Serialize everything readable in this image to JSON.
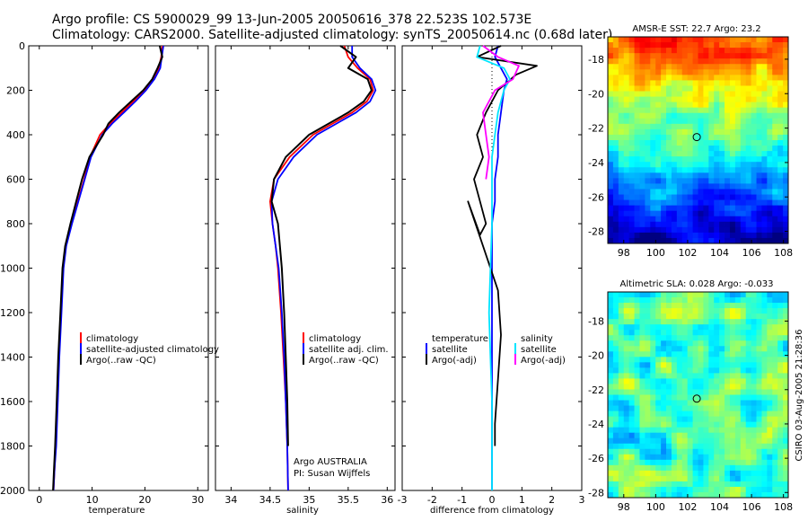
{
  "title_line1": "Argo profile: CS 5900029_99 13-Jun-2005 20050616_378 22.523S 102.573E",
  "title_line2": "Climatology: CARS2000. Satellite-adjusted climatology: synTS_20050614.nc (0.68d later)",
  "colors": {
    "climatology": "#ff0000",
    "satellite": "#0000ff",
    "argo": "#000000",
    "salinity": "#00e5ff",
    "salinity_argo": "#ff00ff"
  },
  "chart_data": [
    {
      "type": "line",
      "xlabel": "temperature",
      "ylim": [
        2000,
        0
      ],
      "xlim": [
        -2,
        32
      ],
      "xticks": [
        0,
        10,
        20,
        30
      ],
      "yticks": [
        0,
        200,
        400,
        600,
        800,
        1000,
        1200,
        1400,
        1600,
        1800,
        2000
      ],
      "series": [
        {
          "name": "climatology",
          "color": "#ff0000",
          "x": [
            23.3,
            23.1,
            22.6,
            21.5,
            19.9,
            17.8,
            15.6,
            13.4,
            11.5,
            9.6,
            8.5,
            7.3,
            6.1,
            5.0,
            4.5,
            4.1,
            3.7,
            3.4,
            3.1,
            2.9,
            2.7
          ],
          "y": [
            0,
            50,
            100,
            150,
            200,
            250,
            300,
            350,
            400,
            500,
            600,
            700,
            800,
            900,
            1000,
            1200,
            1400,
            1600,
            1800,
            1900,
            2000
          ]
        },
        {
          "name": "satellite-adjusted climatology",
          "color": "#0000ff",
          "x": [
            23.5,
            23.2,
            22.9,
            21.8,
            20.2,
            18.2,
            16.0,
            13.8,
            11.9,
            9.8,
            8.6,
            7.4,
            6.2,
            5.1,
            4.6,
            4.2,
            3.8,
            3.5,
            3.2,
            2.9,
            2.7
          ],
          "y": [
            0,
            50,
            100,
            150,
            200,
            250,
            300,
            350,
            400,
            500,
            600,
            700,
            800,
            900,
            1000,
            1200,
            1400,
            1600,
            1800,
            1900,
            2000
          ]
        },
        {
          "name": "Argo(..raw -QC)",
          "color": "#000000",
          "x": [
            22.8,
            23.3,
            22.4,
            21.4,
            19.7,
            17.4,
            15.1,
            13.1,
            12.1,
            9.5,
            8.1,
            7.0,
            5.9,
            4.9,
            4.4,
            4.0,
            3.6,
            3.3,
            3.0,
            2.8,
            2.6
          ],
          "y": [
            0,
            50,
            100,
            150,
            200,
            250,
            300,
            350,
            400,
            500,
            600,
            700,
            800,
            900,
            1000,
            1200,
            1400,
            1600,
            1800,
            1900,
            2000
          ]
        }
      ]
    },
    {
      "type": "line",
      "xlabel": "salinity",
      "ylim": [
        2000,
        0
      ],
      "xlim": [
        33.8,
        36.1
      ],
      "xticks": [
        34,
        34.5,
        35,
        35.5,
        36
      ],
      "series": [
        {
          "name": "climatology",
          "color": "#ff0000",
          "x": [
            35.45,
            35.5,
            35.62,
            35.78,
            35.82,
            35.74,
            35.55,
            35.3,
            35.05,
            34.75,
            34.55,
            34.5,
            34.53,
            34.57,
            34.6,
            34.64,
            34.67,
            34.7,
            34.72,
            34.73
          ],
          "y": [
            0,
            50,
            100,
            150,
            200,
            250,
            300,
            350,
            400,
            500,
            600,
            700,
            800,
            900,
            1000,
            1200,
            1400,
            1600,
            1800,
            2000
          ]
        },
        {
          "name": "satellite adj. clim.",
          "color": "#0000ff",
          "x": [
            35.55,
            35.55,
            35.65,
            35.8,
            35.85,
            35.78,
            35.6,
            35.35,
            35.1,
            34.8,
            34.6,
            34.52,
            34.53,
            34.57,
            34.61,
            34.65,
            34.68,
            34.7,
            34.72,
            34.73
          ],
          "y": [
            0,
            50,
            100,
            150,
            200,
            250,
            300,
            350,
            400,
            500,
            600,
            700,
            800,
            900,
            1000,
            1200,
            1400,
            1600,
            1800,
            2000
          ]
        },
        {
          "name": "Argo(..raw -QC)",
          "color": "#000000",
          "x": [
            35.4,
            35.6,
            35.5,
            35.75,
            35.8,
            35.7,
            35.5,
            35.25,
            35.0,
            34.7,
            34.55,
            34.52,
            34.6,
            34.65,
            34.68,
            34.7,
            34.72,
            34.73
          ],
          "y": [
            0,
            50,
            100,
            150,
            200,
            250,
            300,
            350,
            400,
            500,
            600,
            700,
            800,
            1000,
            1200,
            1400,
            1600,
            1800
          ]
        }
      ]
    },
    {
      "type": "line",
      "xlabel": "difference from climatology",
      "ylim": [
        2000,
        0
      ],
      "xlim": [
        -3,
        3
      ],
      "xticks": [
        -3,
        -2,
        -1,
        0,
        1,
        2,
        3
      ],
      "series": [
        {
          "name": "temperature satellite",
          "color": "#0000ff",
          "x": [
            0.2,
            0.1,
            0.3,
            0.5,
            0.4,
            0.3,
            0.2,
            0.2,
            0.1,
            0.1,
            0.0,
            0.0,
            0.0,
            0.0,
            0.0,
            0.0
          ],
          "y": [
            0,
            50,
            100,
            150,
            200,
            300,
            400,
            500,
            600,
            700,
            800,
            1000,
            1200,
            1400,
            1600,
            2000
          ]
        },
        {
          "name": "temperature Argo(-adj)",
          "color": "#000000",
          "x": [
            0.3,
            -0.5,
            1.5,
            0.8,
            0.2,
            -0.2,
            -0.5,
            -0.3,
            -0.6,
            -0.4,
            -0.2,
            -0.4,
            -0.8,
            -0.3,
            0.2,
            0.3,
            0.2,
            0.1,
            0.1
          ],
          "y": [
            0,
            50,
            90,
            130,
            200,
            300,
            400,
            500,
            600,
            700,
            800,
            850,
            700,
            900,
            1100,
            1300,
            1500,
            1700,
            1800
          ]
        },
        {
          "name": "salinity satellite",
          "color": "#00e5ff",
          "x": [
            -0.4,
            -0.5,
            0.4,
            0.6,
            0.4,
            0.2,
            0.1,
            0.0,
            0.0,
            0.0,
            -0.05,
            -0.1,
            -0.05,
            0.0,
            0.0
          ],
          "y": [
            0,
            50,
            100,
            150,
            200,
            300,
            400,
            500,
            600,
            800,
            1000,
            1200,
            1400,
            1600,
            2000
          ]
        },
        {
          "name": "salinity Argo(-adj)",
          "color": "#ff00ff",
          "x": [
            -0.3,
            0.2,
            0.9,
            0.7,
            0.1,
            -0.3,
            -0.2,
            -0.1,
            -0.2
          ],
          "y": [
            0,
            50,
            90,
            150,
            200,
            300,
            400,
            500,
            600
          ]
        }
      ]
    },
    {
      "type": "heatmap",
      "title": "AMSR-E SST: 22.7 Argo: 23.2",
      "xlim": [
        97,
        108.3
      ],
      "ylim": [
        -28.7,
        -16.7
      ],
      "xticks": [
        98,
        100,
        102,
        104,
        106,
        108
      ],
      "yticks": [
        -18,
        -20,
        -22,
        -24,
        -26,
        -28
      ],
      "marker": {
        "x": 102.573,
        "y": -22.523
      }
    },
    {
      "type": "heatmap",
      "title": "Altimetric SLA: 0.028 Argo: -0.033",
      "xlim": [
        97,
        108.3
      ],
      "ylim": [
        -28.3,
        -16.3
      ],
      "xticks": [
        98,
        100,
        102,
        104,
        106,
        108
      ],
      "yticks": [
        -18,
        -20,
        -22,
        -24,
        -26,
        -28
      ],
      "marker": {
        "x": 102.573,
        "y": -22.523
      }
    }
  ],
  "legends": {
    "temperature": [
      "climatology",
      "satellite-adjusted climatology",
      "Argo(..raw -QC)"
    ],
    "salinity": [
      "climatology",
      "satellite adj. clim.",
      "Argo(..raw -QC)"
    ],
    "difference_left": [
      "temperature",
      "satellite",
      "Argo(-adj)"
    ],
    "difference_right": [
      "salinity",
      "satellite",
      "Argo(-adj)"
    ]
  },
  "credits": {
    "argo_line1": "Argo AUSTRALIA",
    "argo_line2": "PI: Susan Wijffels",
    "csiro": "CSIRO 03-Aug-2005 21:28:36"
  }
}
